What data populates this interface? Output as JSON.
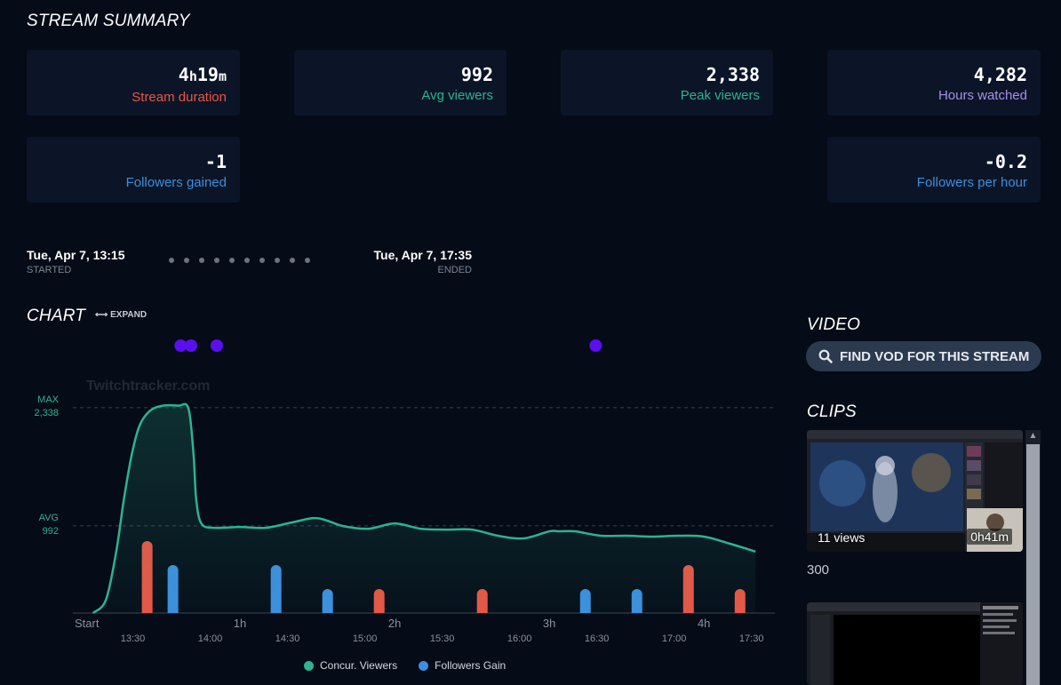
{
  "summary": {
    "title": "STREAM SUMMARY",
    "cards": [
      {
        "value_num": "4",
        "value_h": "h",
        "value_min": "19",
        "value_m": "m",
        "label": "Stream duration",
        "color": "#ec5444"
      },
      {
        "value": "992",
        "label": "Avg viewers",
        "color": "#2db38f"
      },
      {
        "value": "2,338",
        "label": "Peak viewers",
        "color": "#2db38f"
      },
      {
        "value": "4,282",
        "label": "Hours watched",
        "color": "#a88ee6"
      },
      {
        "value": "-1",
        "label": "Followers gained",
        "color": "#3d8ee0"
      },
      {
        "value": "-0.2",
        "label": "Followers per hour",
        "color": "#3d8ee0"
      }
    ]
  },
  "timeline": {
    "started_date": "Tue, Apr 7, 13:15",
    "started_label": "STARTED",
    "ended_date": "Tue, Apr 7, 17:35",
    "ended_label": "ENDED"
  },
  "chart_section": {
    "title": "CHART",
    "expand_label": "EXPAND",
    "watermark": "Twitchtracker.com"
  },
  "video": {
    "title": "VIDEO",
    "find_vod_label": "FIND VOD FOR THIS STREAM"
  },
  "clips": {
    "title": "CLIPS",
    "first_views": "11 views",
    "first_duration": "0h41m",
    "first_count": "300"
  },
  "chart_data": {
    "type": "line",
    "x_unit": "minutes from start",
    "xlim": [
      0,
      262
    ],
    "ylim": [
      0,
      2680
    ],
    "reference_lines": [
      {
        "label": "MAX",
        "value_label": "2,338",
        "value": 2338
      },
      {
        "label": "AVG",
        "value_label": "992",
        "value": 992
      }
    ],
    "duration_ticks": [
      {
        "x": 0,
        "label": "Start"
      },
      {
        "x": 60,
        "label": "1h"
      },
      {
        "x": 120,
        "label": "2h"
      },
      {
        "x": 180,
        "label": "3h"
      },
      {
        "x": 240,
        "label": "4h"
      }
    ],
    "clock_ticks": [
      {
        "x": 15,
        "label": "13:30"
      },
      {
        "x": 45,
        "label": "14:00"
      },
      {
        "x": 75,
        "label": "14:30"
      },
      {
        "x": 105,
        "label": "15:00"
      },
      {
        "x": 135,
        "label": "15:30"
      },
      {
        "x": 165,
        "label": "16:00"
      },
      {
        "x": 195,
        "label": "16:30"
      },
      {
        "x": 225,
        "label": "17:00"
      },
      {
        "x": 255,
        "label": "17:30"
      }
    ],
    "series": [
      {
        "name": "Concur. Viewers",
        "color": "#2db38f",
        "x": [
          3,
          8,
          12,
          15,
          18,
          21,
          25,
          30,
          36,
          40,
          42,
          43,
          45,
          50,
          60,
          70,
          80,
          90,
          100,
          110,
          120,
          130,
          140,
          150,
          160,
          170,
          180,
          184,
          190,
          200,
          210,
          220,
          230,
          240,
          250,
          260
        ],
        "y": [
          0,
          150,
          700,
          1300,
          1800,
          2130,
          2300,
          2360,
          2360,
          2330,
          1800,
          1300,
          1020,
          970,
          980,
          970,
          1030,
          1080,
          990,
          960,
          1020,
          960,
          950,
          950,
          880,
          850,
          930,
          930,
          930,
          880,
          880,
          870,
          880,
          870,
          790,
          700
        ]
      },
      {
        "name": "Followers Gain",
        "color": "#3d8ee0",
        "type": "bar",
        "bars": [
          {
            "x": 24,
            "y": 3,
            "color": "#ec5444"
          },
          {
            "x": 34,
            "y": 2,
            "color": "#3d8ee0"
          },
          {
            "x": 74,
            "y": 2,
            "color": "#3d8ee0"
          },
          {
            "x": 94,
            "y": 1,
            "color": "#3d8ee0"
          },
          {
            "x": 114,
            "y": 1,
            "color": "#ec5444"
          },
          {
            "x": 154,
            "y": 1,
            "color": "#ec5444"
          },
          {
            "x": 194,
            "y": 1,
            "color": "#3d8ee0"
          },
          {
            "x": 214,
            "y": 1,
            "color": "#3d8ee0"
          },
          {
            "x": 234,
            "y": 2,
            "color": "#ec5444"
          },
          {
            "x": 254,
            "y": 1,
            "color": "#ec5444"
          }
        ],
        "ylim": [
          0,
          10
        ]
      }
    ],
    "event_markers": [
      {
        "x": 37,
        "color": "#5b0ff0"
      },
      {
        "x": 41,
        "color": "#5b0ff0"
      },
      {
        "x": 51,
        "color": "#5b0ff0"
      },
      {
        "x": 198,
        "color": "#5b0ff0"
      }
    ],
    "legend": [
      {
        "label": "Concur. Viewers",
        "color": "#2db38f"
      },
      {
        "label": "Followers Gain",
        "color": "#3d8ee0"
      }
    ]
  }
}
